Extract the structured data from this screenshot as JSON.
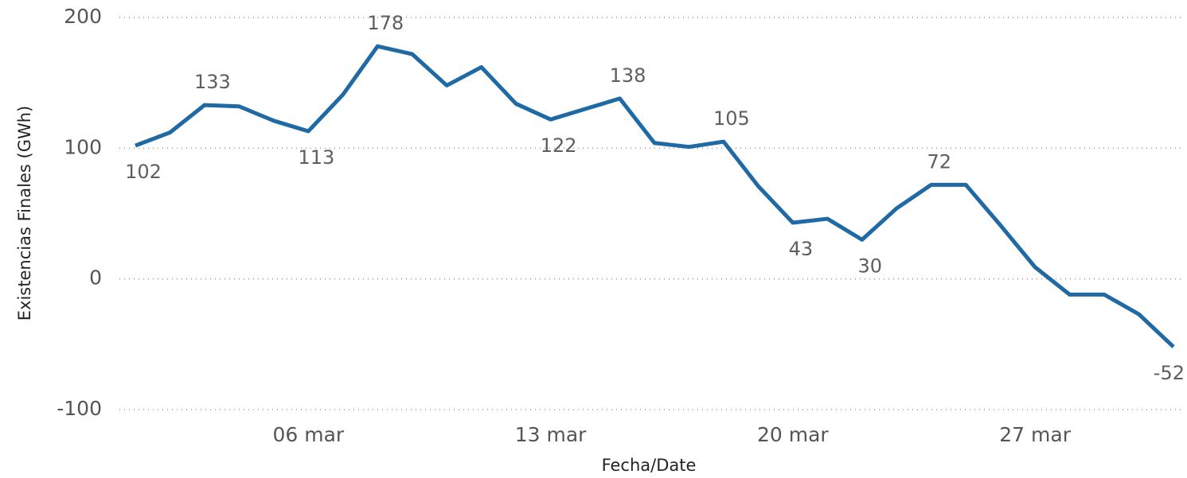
{
  "chart_data": {
    "type": "line",
    "ylabel": "Existencias Finales (GWh)",
    "xlabel": "Fecha/Date",
    "categories": [
      null,
      null,
      null,
      null,
      null,
      "06 mar",
      null,
      null,
      null,
      null,
      null,
      null,
      "13 mar",
      null,
      null,
      null,
      null,
      null,
      null,
      "20 mar",
      null,
      null,
      null,
      null,
      null,
      null,
      "27 mar",
      null,
      null,
      null,
      null
    ],
    "series": [
      {
        "name": "Existencias Finales",
        "color": "#1f6aa5",
        "values": [
          102,
          112,
          133,
          132,
          121,
          113,
          141,
          178,
          172,
          148,
          162,
          134,
          122,
          130,
          138,
          104,
          101,
          105,
          71,
          43,
          46,
          30,
          54,
          72,
          72,
          41,
          9,
          -12,
          -12,
          -27,
          -52
        ],
        "value_labels": [
          102,
          null,
          133,
          null,
          null,
          113,
          null,
          178,
          null,
          null,
          null,
          null,
          122,
          null,
          138,
          null,
          null,
          105,
          null,
          43,
          null,
          30,
          null,
          72,
          null,
          null,
          null,
          null,
          null,
          null,
          -52
        ]
      }
    ],
    "ylim": [
      -100,
      200
    ],
    "yticks": [
      -100,
      0,
      100,
      200
    ],
    "grid": true
  }
}
